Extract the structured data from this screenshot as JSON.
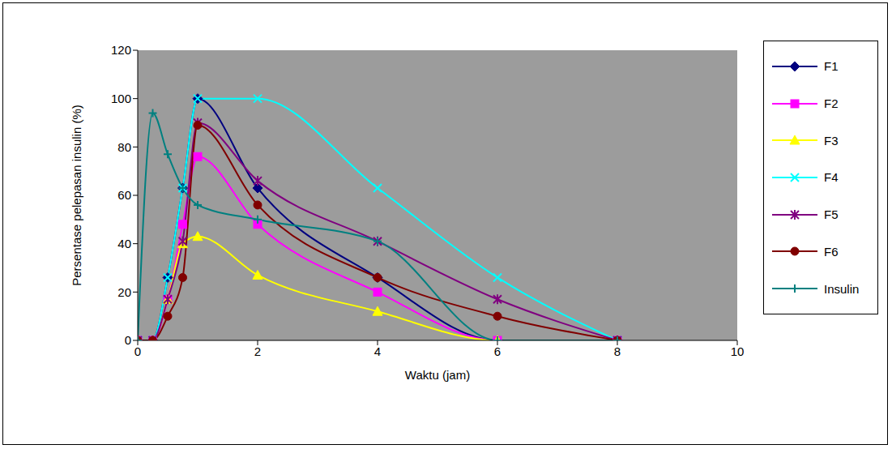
{
  "chart_data": {
    "type": "line",
    "x_label": "Waktu (jam)",
    "y_label": "Persentase pelepasan insulin (%)",
    "x": [
      0,
      0.25,
      0.5,
      0.75,
      1,
      2,
      4,
      6,
      8
    ],
    "xlim": [
      0,
      10
    ],
    "xticks": [
      0,
      2,
      4,
      6,
      8,
      10
    ],
    "ylim": [
      0,
      120
    ],
    "yticks": [
      0,
      20,
      40,
      60,
      80,
      100,
      120
    ],
    "grid": false,
    "legend": "right",
    "line_style": "smooth",
    "series": [
      {
        "name": "F1",
        "color": "#000080",
        "marker": "diamond",
        "values": [
          0,
          0,
          26,
          63,
          100,
          63,
          26,
          0,
          0
        ]
      },
      {
        "name": "F2",
        "color": "#ff00ff",
        "marker": "square",
        "values": [
          0,
          0,
          17,
          48,
          76,
          48,
          20,
          0,
          0
        ]
      },
      {
        "name": "F3",
        "color": "#ffff00",
        "marker": "triangle",
        "values": [
          0,
          0,
          17,
          40,
          43,
          27,
          12,
          0,
          0
        ]
      },
      {
        "name": "F4",
        "color": "#00ffff",
        "marker": "x",
        "values": [
          0,
          0,
          26,
          63,
          100,
          100,
          63,
          26,
          0
        ]
      },
      {
        "name": "F5",
        "color": "#800080",
        "marker": "star",
        "values": [
          0,
          0,
          17,
          41,
          90,
          66,
          41,
          17,
          0
        ]
      },
      {
        "name": "F6",
        "color": "#800000",
        "marker": "circle",
        "values": [
          0,
          0,
          10,
          26,
          89,
          56,
          26,
          10,
          0
        ]
      },
      {
        "name": "Insulin",
        "color": "#008080",
        "marker": "plus",
        "values": [
          0,
          94,
          77,
          63,
          56,
          50,
          41,
          0,
          0
        ]
      }
    ]
  }
}
